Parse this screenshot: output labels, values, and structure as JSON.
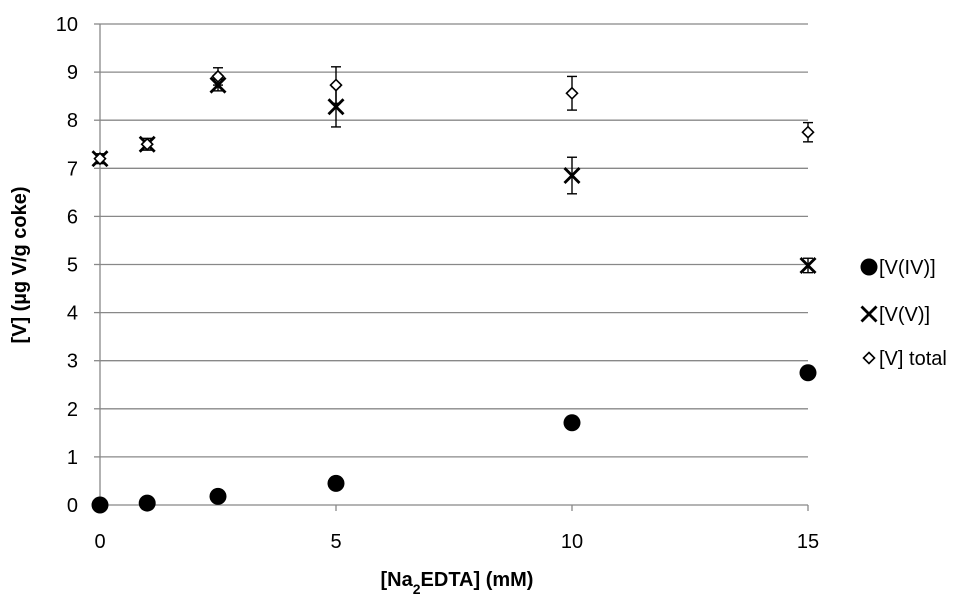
{
  "chart_data": {
    "type": "scatter",
    "title": "",
    "xlabel": {
      "prefix": "[Na",
      "sub": "2",
      "suffix": "EDTA] (mM)"
    },
    "ylabel": "[V] (µg V/g coke)",
    "xlim": [
      0,
      15
    ],
    "ylim": [
      0,
      10
    ],
    "xticks": [
      "0",
      "5",
      "10",
      "15"
    ],
    "yticks": [
      "0",
      "1",
      "2",
      "3",
      "4",
      "5",
      "6",
      "7",
      "8",
      "9",
      "10"
    ],
    "grid": true,
    "legend_position": "right",
    "series": [
      {
        "name": "[V(IV)]",
        "marker": "filled-circle",
        "color": "#000000",
        "x": [
          0,
          1,
          2.5,
          5,
          10,
          15
        ],
        "y": [
          0.0,
          0.04,
          0.18,
          0.45,
          1.71,
          2.75
        ],
        "error": [
          0,
          0,
          0,
          0,
          0,
          0
        ]
      },
      {
        "name": "[V(V)]",
        "marker": "x",
        "color": "#000000",
        "x": [
          0,
          1,
          2.5,
          5,
          10,
          15
        ],
        "y": [
          7.2,
          7.5,
          8.73,
          8.28,
          6.85,
          4.98
        ],
        "error": [
          0.1,
          0.12,
          0.12,
          0.42,
          0.38,
          0.15
        ]
      },
      {
        "name": "[V] total",
        "marker": "open-diamond",
        "color": "#000000",
        "x": [
          0,
          1,
          2.5,
          5,
          10,
          15
        ],
        "y": [
          7.2,
          7.5,
          8.91,
          8.73,
          8.56,
          7.75
        ],
        "error": [
          0.1,
          0.12,
          0.18,
          0.38,
          0.35,
          0.2
        ]
      }
    ]
  }
}
